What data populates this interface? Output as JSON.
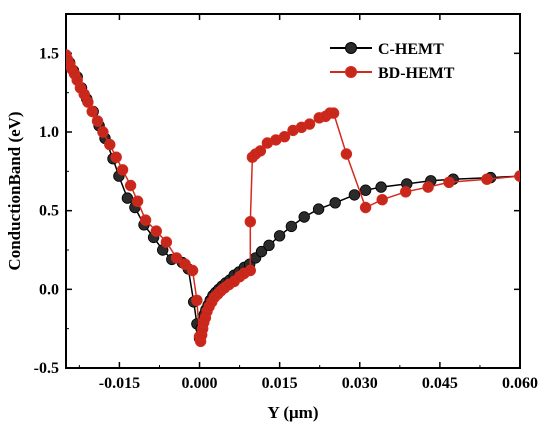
{
  "chart_data": {
    "type": "line",
    "xlabel": "Y (μm)",
    "ylabel": "ConductionBand (eV)",
    "xlim": [
      -0.025,
      0.06
    ],
    "ylim": [
      -0.5,
      1.75
    ],
    "xticks": [
      -0.015,
      0.0,
      0.015,
      0.03,
      0.045,
      0.06
    ],
    "xtick_labels": [
      "-0.015",
      "0.000",
      "0.015",
      "0.030",
      "0.045",
      "0.060"
    ],
    "yticks": [
      -0.5,
      0.0,
      0.5,
      1.0,
      1.5
    ],
    "ytick_labels": [
      "-0.5",
      "0.0",
      "0.5",
      "1.0",
      "1.5"
    ],
    "legend_position": "top-right",
    "colors": {
      "c_hemt": "#000000",
      "bd_hemt": "#d42a1e",
      "c_hemt_marker": "#2b2b2b",
      "bd_hemt_marker": "#c8281c"
    },
    "series": [
      {
        "name": "C-HEMT",
        "key": "c_hemt",
        "x": [
          -0.025,
          -0.0243,
          -0.0236,
          -0.0229,
          -0.0221,
          -0.0211,
          -0.0199,
          -0.0188,
          -0.0177,
          -0.0162,
          -0.0151,
          -0.0135,
          -0.0121,
          -0.0104,
          -0.0086,
          -0.0069,
          -0.0052,
          -0.0032,
          -0.0021,
          -0.0011,
          -0.0005,
          0.0,
          0.0003,
          0.0006,
          0.0009,
          0.0012,
          0.0016,
          0.002,
          0.0025,
          0.003,
          0.0036,
          0.0042,
          0.0049,
          0.0057,
          0.0065,
          0.0074,
          0.0084,
          0.0094,
          0.0105,
          0.0116,
          0.013,
          0.015,
          0.0172,
          0.0196,
          0.0223,
          0.0254,
          0.029,
          0.0311,
          0.034,
          0.0388,
          0.0433,
          0.0475,
          0.0545,
          0.06
        ],
        "y": [
          1.47,
          1.44,
          1.39,
          1.35,
          1.28,
          1.21,
          1.13,
          1.04,
          0.96,
          0.83,
          0.72,
          0.58,
          0.52,
          0.41,
          0.33,
          0.25,
          0.19,
          0.17,
          0.13,
          -0.08,
          -0.22,
          -0.31,
          -0.25,
          -0.2,
          -0.16,
          -0.13,
          -0.1,
          -0.07,
          -0.04,
          -0.02,
          0.0,
          0.02,
          0.04,
          0.06,
          0.09,
          0.11,
          0.14,
          0.16,
          0.2,
          0.24,
          0.28,
          0.34,
          0.4,
          0.46,
          0.51,
          0.55,
          0.6,
          0.63,
          0.65,
          0.67,
          0.69,
          0.7,
          0.71,
          0.72
        ]
      },
      {
        "name": "BD-HEMT",
        "key": "bd_hemt",
        "x": [
          -0.025,
          -0.0247,
          -0.0243,
          -0.0239,
          -0.0234,
          -0.0229,
          -0.0223,
          -0.0216,
          -0.0209,
          -0.0201,
          -0.0191,
          -0.0181,
          -0.0168,
          -0.0156,
          -0.0144,
          -0.0129,
          -0.0116,
          -0.0101,
          -0.0081,
          -0.0062,
          -0.0043,
          -0.0027,
          -0.0013,
          -0.0005,
          0.0,
          0.0002,
          0.0004,
          0.0006,
          0.0008,
          0.0011,
          0.0014,
          0.0018,
          0.0023,
          0.0028,
          0.0034,
          0.004,
          0.0047,
          0.0055,
          0.0065,
          0.0075,
          0.0083,
          0.0095,
          0.0095,
          0.0099,
          0.0105,
          0.0114,
          0.0127,
          0.0143,
          0.0159,
          0.0175,
          0.0191,
          0.0206,
          0.0224,
          0.0236,
          0.0244,
          0.0251,
          0.0275,
          0.0311,
          0.0342,
          0.0386,
          0.0428,
          0.0467,
          0.0538,
          0.06
        ],
        "y": [
          1.49,
          1.46,
          1.43,
          1.4,
          1.37,
          1.33,
          1.28,
          1.24,
          1.19,
          1.13,
          1.07,
          1.0,
          0.92,
          0.84,
          0.76,
          0.66,
          0.56,
          0.44,
          0.37,
          0.3,
          0.2,
          0.16,
          0.12,
          -0.07,
          -0.3,
          -0.33,
          -0.29,
          -0.25,
          -0.21,
          -0.18,
          -0.14,
          -0.11,
          -0.08,
          -0.05,
          -0.03,
          -0.01,
          0.01,
          0.03,
          0.05,
          0.08,
          0.1,
          0.12,
          0.43,
          0.84,
          0.86,
          0.88,
          0.93,
          0.95,
          0.97,
          1.01,
          1.03,
          1.05,
          1.09,
          1.1,
          1.12,
          1.12,
          0.86,
          0.52,
          0.57,
          0.62,
          0.65,
          0.68,
          0.7,
          0.72
        ]
      }
    ]
  }
}
